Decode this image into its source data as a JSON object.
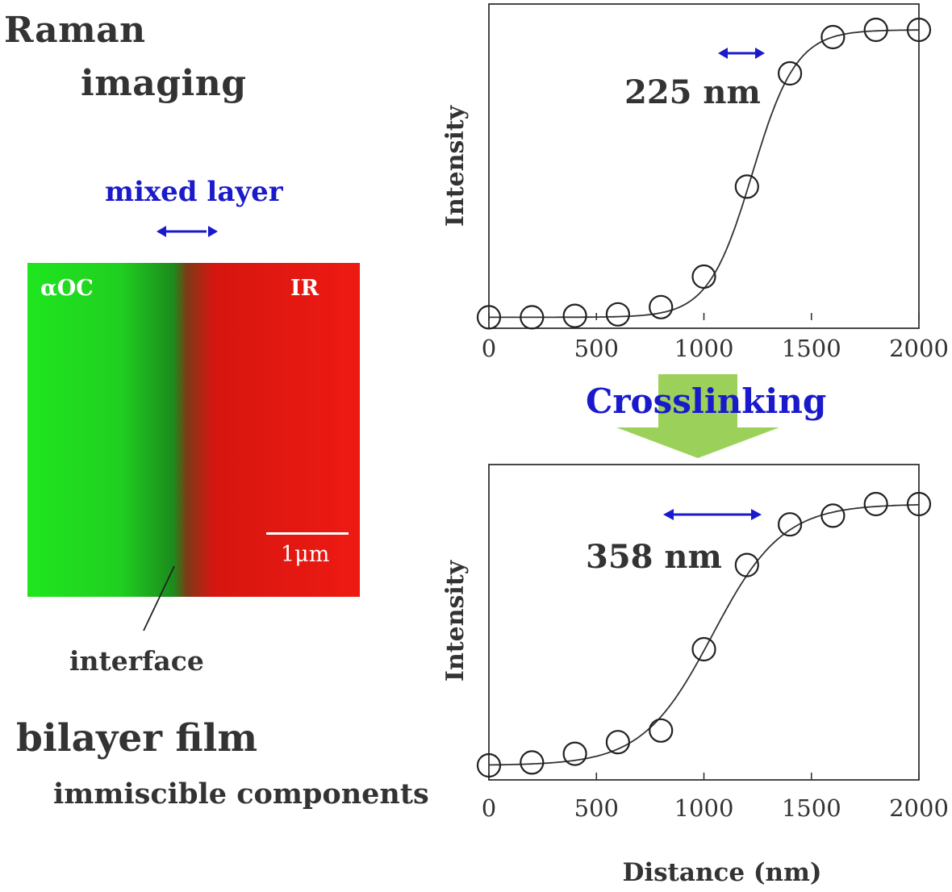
{
  "left": {
    "title_line1": "Raman",
    "title_line2": "imaging",
    "mixed_layer_label": "mixed layer",
    "map": {
      "left_label": "αOC",
      "right_label": "IR",
      "scale_bar_label": "1μm"
    },
    "interface_label": "interface",
    "caption_line1": "bilayer film",
    "caption_line2": "immiscible components"
  },
  "arrow_label": "Crosslinking",
  "colors": {
    "annotation_blue": "#1a1acc",
    "arrow_green": "#9bd15a",
    "map_green": "#1fe61f",
    "map_red": "#ee1a12"
  },
  "chart_data": [
    {
      "type": "scatter",
      "title": "",
      "xlabel": "",
      "ylabel": "Intensity",
      "xlim": [
        0,
        2000
      ],
      "ylim": [
        0,
        1
      ],
      "xticks": [
        "0",
        "500",
        "1000",
        "1500",
        "2000"
      ],
      "annotation": "225 nm",
      "points": [
        {
          "x": 0,
          "y": 0.01
        },
        {
          "x": 200,
          "y": 0.01
        },
        {
          "x": 400,
          "y": 0.015
        },
        {
          "x": 600,
          "y": 0.02
        },
        {
          "x": 800,
          "y": 0.045
        },
        {
          "x": 1000,
          "y": 0.15
        },
        {
          "x": 1200,
          "y": 0.46
        },
        {
          "x": 1400,
          "y": 0.85
        },
        {
          "x": 1600,
          "y": 0.975
        },
        {
          "x": 1800,
          "y": 1.0
        },
        {
          "x": 2000,
          "y": 1.0
        }
      ],
      "fit": {
        "model": "sigmoid",
        "x0": 1225,
        "width_nm": 225
      }
    },
    {
      "type": "scatter",
      "title": "",
      "xlabel": "Distance (nm)",
      "ylabel": "Intensity",
      "xlim": [
        0,
        2000
      ],
      "ylim": [
        0,
        1
      ],
      "xticks": [
        "0",
        "500",
        "1000",
        "1500",
        "2000"
      ],
      "annotation": "358 nm",
      "points": [
        {
          "x": 0,
          "y": 0.05
        },
        {
          "x": 200,
          "y": 0.06
        },
        {
          "x": 400,
          "y": 0.09
        },
        {
          "x": 600,
          "y": 0.13
        },
        {
          "x": 800,
          "y": 0.17
        },
        {
          "x": 1000,
          "y": 0.45
        },
        {
          "x": 1200,
          "y": 0.74
        },
        {
          "x": 1400,
          "y": 0.88
        },
        {
          "x": 1600,
          "y": 0.91
        },
        {
          "x": 1800,
          "y": 0.95
        },
        {
          "x": 2000,
          "y": 0.95
        }
      ],
      "fit": {
        "model": "sigmoid",
        "x0": 1040,
        "width_nm": 358
      }
    }
  ]
}
